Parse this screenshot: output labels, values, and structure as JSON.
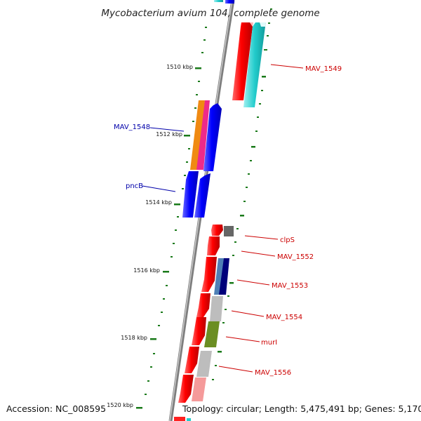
{
  "title": "Mycobacterium avium 104, complete genome",
  "footer": {
    "accession": "Accession: NC_008595",
    "topology": "Topology: circular; Length: 5,475,491 bp; Genes: 5,170"
  },
  "colors": {
    "backbone": "#8a8a8a",
    "tick": "#1a7a1a",
    "label_red": "#cc0000",
    "label_blue": "#0000aa"
  },
  "kbp_labels": [
    "1510 kbp",
    "1512 kbp",
    "1514 kbp",
    "1516 kbp",
    "1518 kbp",
    "1520 kbp"
  ],
  "genes": [
    {
      "name": "MAV_1549",
      "strand": "plus",
      "label": true
    },
    {
      "name": "MAV_1548",
      "strand": "minus",
      "label": true
    },
    {
      "name": "pncB",
      "strand": "minus",
      "label": true
    },
    {
      "name": "clpS",
      "strand": "plus",
      "label": true
    },
    {
      "name": "MAV_1552",
      "strand": "plus",
      "label": true
    },
    {
      "name": "MAV_1553",
      "strand": "plus",
      "label": true
    },
    {
      "name": "MAV_1554",
      "strand": "plus",
      "label": true
    },
    {
      "name": "murI",
      "strand": "plus",
      "label": true
    },
    {
      "name": "MAV_1556",
      "strand": "plus",
      "label": true
    }
  ]
}
